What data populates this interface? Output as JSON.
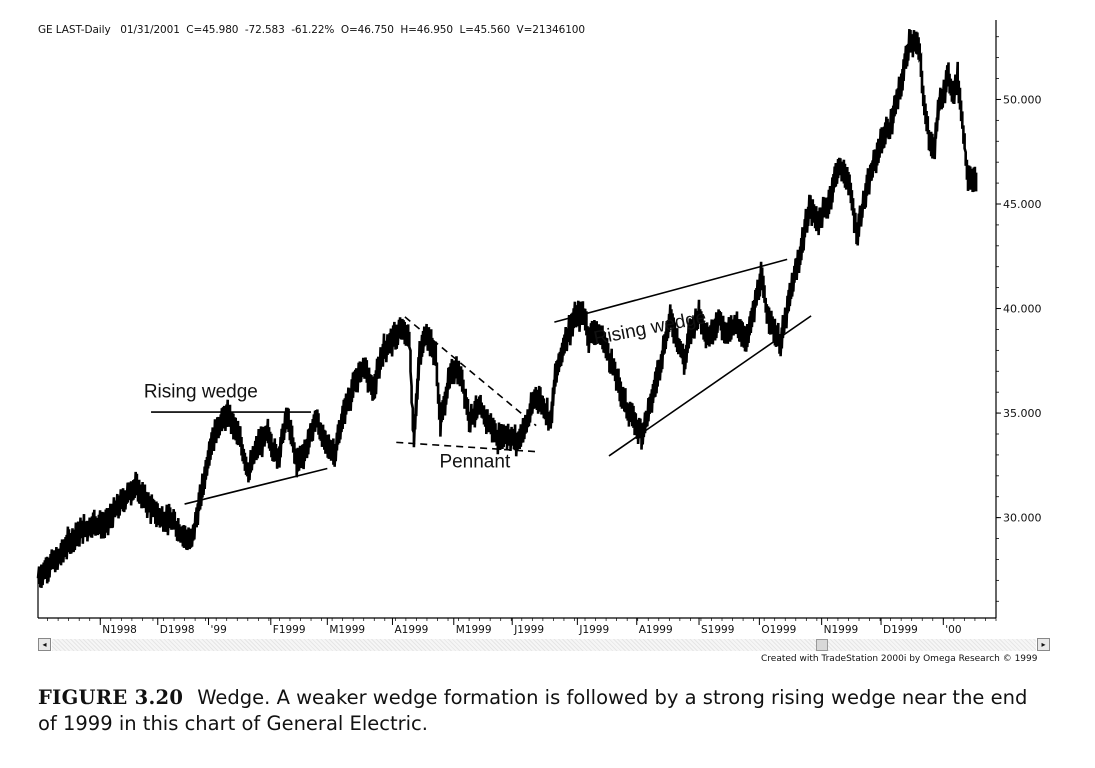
{
  "header": {
    "symbol": "GE LAST-Daily",
    "date": "01/31/2001",
    "close": "C=45.980",
    "change": "-72.583",
    "pct": "-61.22%",
    "open": "O=46.750",
    "high": "H=46.950",
    "low": "L=45.560",
    "volume": "V=21346100"
  },
  "credit": "Created with TradeStation 2000i by Omega Research © 1999",
  "caption": {
    "label": "FIGURE 3.20",
    "text": "Wedge. A weaker wedge formation is followed by a strong rising wedge near the end of 1999 in this chart of General Electric."
  },
  "scrollbar": {
    "left_arrow": "◂",
    "right_arrow": "▸"
  },
  "colors": {
    "price": "#000000",
    "background": "#ffffff",
    "axis": "#000000"
  },
  "chart_data": {
    "type": "line",
    "title": "GE LAST-Daily",
    "yaxis_side": "right",
    "ylim": [
      25.2,
      53.8
    ],
    "yticks": [
      30.0,
      35.0,
      40.0,
      45.0,
      50.0
    ],
    "ytick_labels": [
      "30.000",
      "35.000",
      "40.000",
      "45.000",
      "50.000"
    ],
    "xlim": [
      0,
      100
    ],
    "xticks": [
      {
        "x": 6.5,
        "label": "N1998"
      },
      {
        "x": 12.5,
        "label": "D1998"
      },
      {
        "x": 17.8,
        "label": "'99"
      },
      {
        "x": 24.3,
        "label": "F1999"
      },
      {
        "x": 30.2,
        "label": "M1999"
      },
      {
        "x": 37.0,
        "label": "A1999"
      },
      {
        "x": 43.4,
        "label": "M1999"
      },
      {
        "x": 49.5,
        "label": "J1999"
      },
      {
        "x": 56.3,
        "label": "J1999"
      },
      {
        "x": 62.5,
        "label": "A1999"
      },
      {
        "x": 69.0,
        "label": "S1999"
      },
      {
        "x": 75.3,
        "label": "O1999"
      },
      {
        "x": 81.8,
        "label": "N1999"
      },
      {
        "x": 88.0,
        "label": "D1999"
      },
      {
        "x": 94.5,
        "label": "'00"
      }
    ],
    "series": [
      {
        "style": "daily price bars (approximate close path)",
        "points": [
          [
            0.0,
            27.1
          ],
          [
            1.0,
            27.7
          ],
          [
            2.0,
            28.0
          ],
          [
            3.0,
            28.7
          ],
          [
            4.0,
            29.2
          ],
          [
            5.0,
            29.5
          ],
          [
            6.0,
            29.8
          ],
          [
            7.0,
            29.6
          ],
          [
            8.0,
            30.3
          ],
          [
            9.0,
            30.9
          ],
          [
            10.0,
            31.5
          ],
          [
            11.0,
            31.0
          ],
          [
            12.0,
            30.3
          ],
          [
            13.0,
            30.0
          ],
          [
            14.0,
            29.8
          ],
          [
            15.0,
            29.3
          ],
          [
            16.0,
            28.8
          ],
          [
            17.0,
            31.0
          ],
          [
            18.0,
            33.5
          ],
          [
            19.0,
            34.6
          ],
          [
            20.0,
            34.9
          ],
          [
            21.0,
            33.8
          ],
          [
            22.0,
            32.2
          ],
          [
            23.0,
            33.5
          ],
          [
            24.0,
            34.0
          ],
          [
            25.0,
            32.8
          ],
          [
            26.0,
            34.9
          ],
          [
            27.0,
            32.6
          ],
          [
            28.0,
            33.3
          ],
          [
            29.0,
            34.8
          ],
          [
            30.0,
            33.5
          ],
          [
            31.0,
            33.1
          ],
          [
            32.0,
            35.2
          ],
          [
            33.0,
            36.3
          ],
          [
            34.0,
            37.3
          ],
          [
            35.0,
            36.0
          ],
          [
            36.0,
            38.0
          ],
          [
            37.0,
            38.5
          ],
          [
            38.0,
            39.0
          ],
          [
            38.8,
            38.5
          ],
          [
            39.2,
            33.6
          ],
          [
            39.8,
            37.6
          ],
          [
            40.5,
            38.9
          ],
          [
            41.5,
            37.8
          ],
          [
            42.0,
            34.5
          ],
          [
            42.8,
            36.4
          ],
          [
            43.5,
            37.2
          ],
          [
            44.3,
            36.6
          ],
          [
            45.0,
            34.8
          ],
          [
            46.0,
            35.2
          ],
          [
            47.0,
            34.6
          ],
          [
            48.0,
            33.8
          ],
          [
            49.0,
            34.0
          ],
          [
            50.0,
            33.6
          ],
          [
            51.0,
            34.5
          ],
          [
            52.0,
            35.9
          ],
          [
            53.0,
            35.2
          ],
          [
            53.5,
            34.6
          ],
          [
            54.0,
            36.7
          ],
          [
            55.0,
            38.5
          ],
          [
            56.0,
            39.5
          ],
          [
            57.0,
            39.8
          ],
          [
            57.5,
            38.6
          ],
          [
            58.0,
            39.0
          ],
          [
            59.0,
            38.5
          ],
          [
            59.8,
            37.5
          ],
          [
            60.5,
            36.5
          ],
          [
            61.5,
            35.2
          ],
          [
            62.5,
            34.4
          ],
          [
            63.0,
            34.0
          ],
          [
            64.0,
            35.5
          ],
          [
            65.0,
            37.5
          ],
          [
            66.0,
            39.6
          ],
          [
            67.0,
            38.2
          ],
          [
            67.5,
            37.4
          ],
          [
            68.0,
            38.8
          ],
          [
            69.0,
            39.8
          ],
          [
            70.0,
            38.6
          ],
          [
            71.0,
            39.5
          ],
          [
            72.0,
            38.8
          ],
          [
            73.0,
            39.2
          ],
          [
            74.0,
            38.5
          ],
          [
            75.0,
            40.5
          ],
          [
            75.5,
            41.5
          ],
          [
            76.0,
            40.0
          ],
          [
            77.0,
            38.8
          ],
          [
            77.5,
            38.3
          ],
          [
            78.5,
            40.6
          ],
          [
            79.5,
            42.5
          ],
          [
            80.5,
            44.8
          ],
          [
            81.5,
            44.2
          ],
          [
            82.5,
            45.0
          ],
          [
            83.5,
            46.8
          ],
          [
            84.5,
            46.3
          ],
          [
            85.0,
            45.0
          ],
          [
            85.5,
            43.5
          ],
          [
            86.0,
            44.8
          ],
          [
            87.0,
            46.5
          ],
          [
            88.0,
            48.0
          ],
          [
            89.0,
            48.8
          ],
          [
            90.0,
            50.5
          ],
          [
            91.0,
            52.9
          ],
          [
            92.0,
            52.4
          ],
          [
            92.5,
            49.8
          ],
          [
            93.0,
            48.2
          ],
          [
            93.5,
            47.5
          ],
          [
            94.0,
            49.5
          ],
          [
            95.0,
            51.2
          ],
          [
            95.5,
            50.3
          ],
          [
            96.0,
            51.0
          ],
          [
            96.5,
            49.0
          ],
          [
            97.0,
            46.5
          ],
          [
            98.0,
            45.9
          ]
        ]
      }
    ],
    "annotations": [
      {
        "text": "Rising wedge",
        "kind": "label",
        "at": [
          17.0,
          35.75
        ]
      },
      {
        "text": "Pennant",
        "kind": "label",
        "at": [
          45.6,
          32.4
        ]
      },
      {
        "text": "Rising wedge",
        "kind": "label",
        "at": [
          64.0,
          38.8
        ]
      }
    ],
    "trendlines": [
      {
        "style": "solid",
        "from": [
          11.8,
          35.05
        ],
        "to": [
          28.5,
          35.05
        ]
      },
      {
        "style": "solid",
        "from": [
          15.3,
          30.65
        ],
        "to": [
          30.2,
          32.35
        ]
      },
      {
        "style": "dashed",
        "from": [
          38.3,
          39.6
        ],
        "to": [
          52.0,
          34.4
        ]
      },
      {
        "style": "dashed",
        "from": [
          37.4,
          33.6
        ],
        "to": [
          52.2,
          33.15
        ]
      },
      {
        "style": "solid",
        "from": [
          53.9,
          39.35
        ],
        "to": [
          78.2,
          42.35
        ]
      },
      {
        "style": "solid",
        "from": [
          59.6,
          32.95
        ],
        "to": [
          80.7,
          39.65
        ]
      }
    ]
  }
}
